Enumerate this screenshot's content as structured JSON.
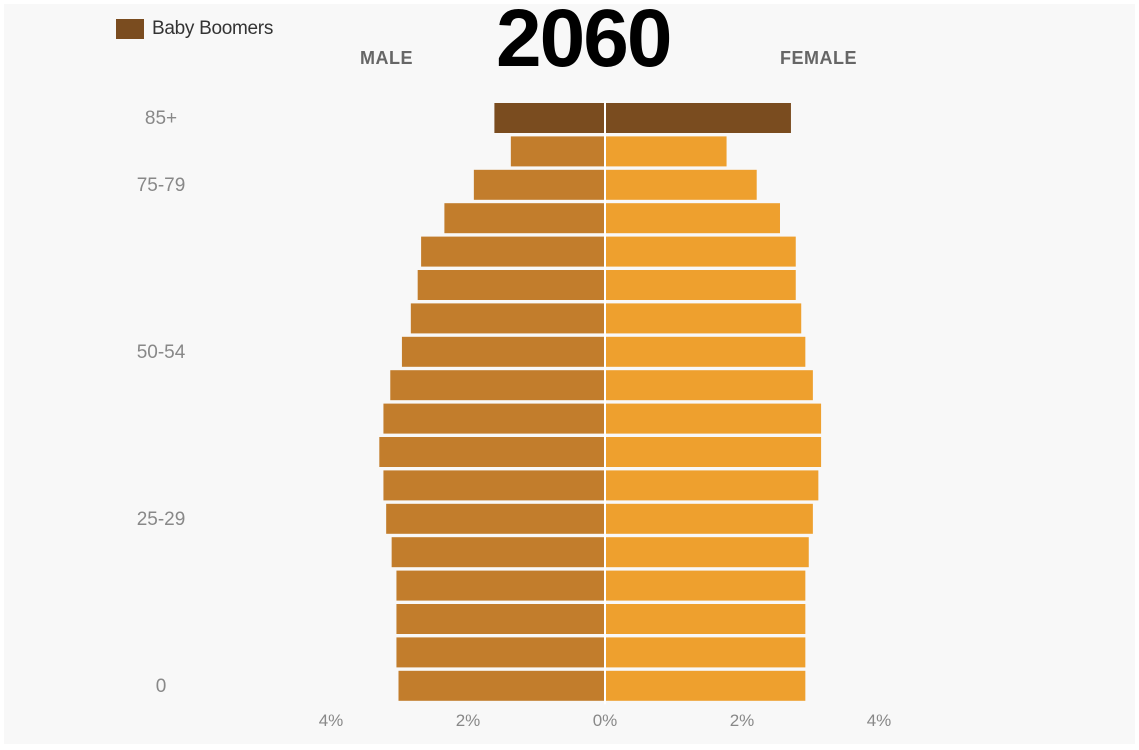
{
  "legend": {
    "label": "Baby Boomers",
    "color": "#7a4c1f"
  },
  "colors": {
    "male": "#c27d2c",
    "female": "#eea02e",
    "boomer": "#7a4c1f"
  },
  "chart_data": {
    "type": "bar",
    "orientation": "horizontal",
    "title": "2060",
    "side_labels": {
      "left": "MALE",
      "right": "FEMALE"
    },
    "age_labels": [
      {
        "group": 0,
        "label": "85+"
      },
      {
        "group": 2,
        "label": "75-79"
      },
      {
        "group": 7,
        "label": "50-54"
      },
      {
        "group": 12,
        "label": "25-29"
      },
      {
        "group": 17,
        "label": "0"
      }
    ],
    "x_ticks": [
      {
        "value": -4,
        "label": "4%"
      },
      {
        "value": -2,
        "label": "2%"
      },
      {
        "value": 0,
        "label": "0%"
      },
      {
        "value": 2,
        "label": "2%"
      },
      {
        "value": 4,
        "label": "4%"
      }
    ],
    "xlim": [
      -4,
      4
    ],
    "series": [
      {
        "name": "MALE",
        "values": [
          1.6,
          1.36,
          1.9,
          2.33,
          2.67,
          2.72,
          2.82,
          2.95,
          3.12,
          3.22,
          3.28,
          3.22,
          3.18,
          3.1,
          3.03,
          3.03,
          3.03,
          3.0
        ]
      },
      {
        "name": "FEMALE",
        "values": [
          2.7,
          1.76,
          2.2,
          2.54,
          2.77,
          2.77,
          2.85,
          2.91,
          3.02,
          3.14,
          3.14,
          3.1,
          3.02,
          2.96,
          2.91,
          2.91,
          2.91,
          2.91
        ]
      }
    ],
    "highlight": {
      "name": "Baby Boomers",
      "groups": [
        0
      ]
    }
  }
}
